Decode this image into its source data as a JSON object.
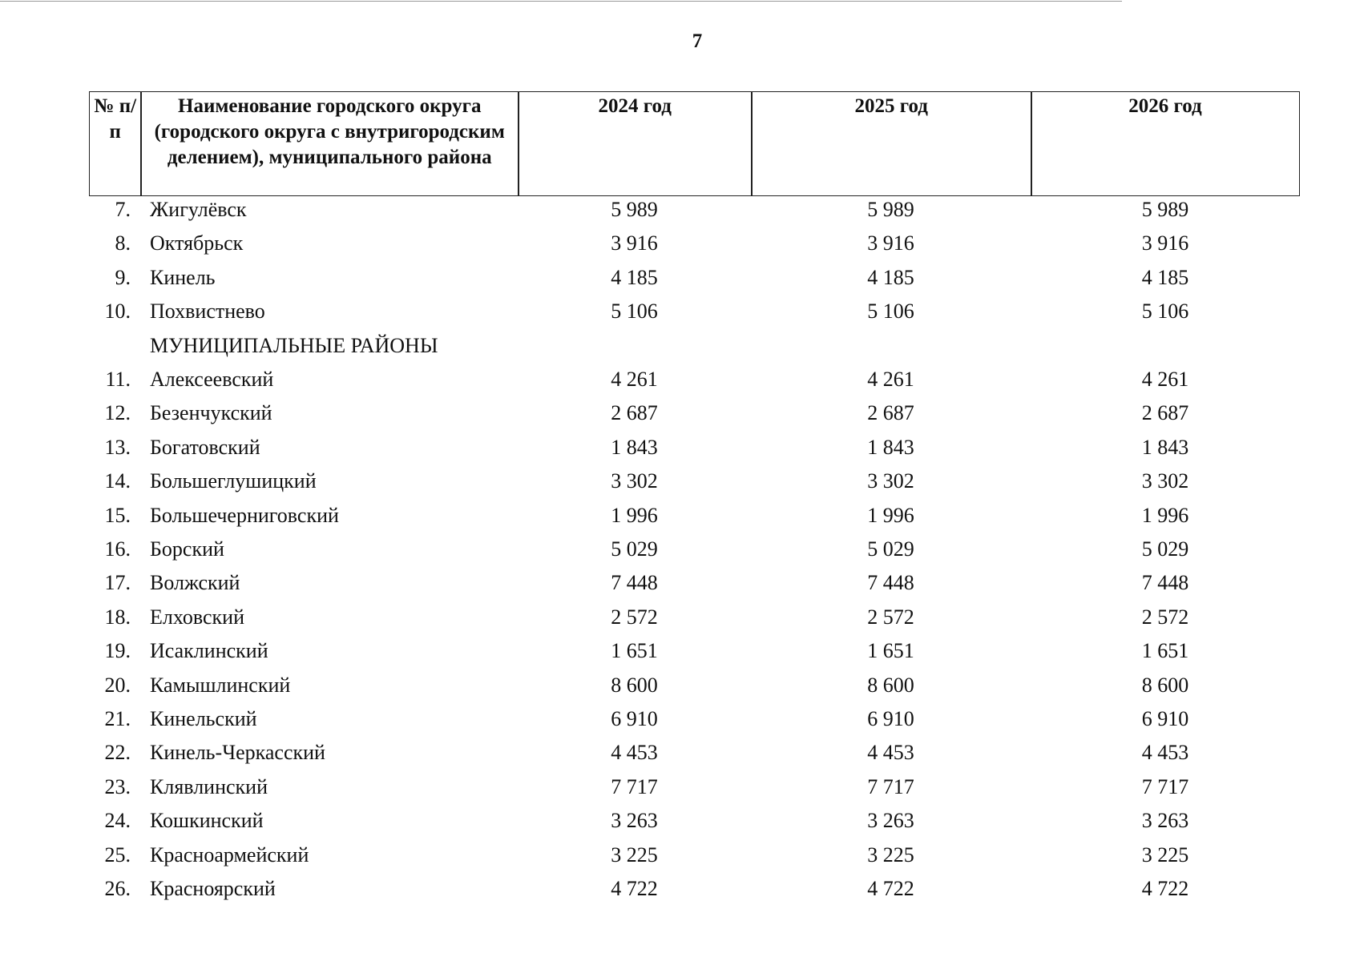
{
  "page_number": "7",
  "table": {
    "header": [
      "№ п/п",
      "Наименование городского округа (городского округа с внутригородским делением), муниципального района",
      "2024 год",
      "2025 год",
      "2026 год"
    ],
    "body": [
      {
        "no": "7.",
        "name": "Жигулёвск",
        "values": [
          "5 989",
          "5 989",
          "5 989"
        ]
      },
      {
        "no": "8.",
        "name": "Октябрьск",
        "values": [
          "3 916",
          "3 916",
          "3 916"
        ]
      },
      {
        "no": "9.",
        "name": "Кинель",
        "values": [
          "4 185",
          "4 185",
          "4 185"
        ]
      },
      {
        "no": "10.",
        "name": "Похвистнево",
        "values": [
          "5 106",
          "5 106",
          "5 106"
        ]
      },
      {
        "section": "МУНИЦИПАЛЬНЫЕ РАЙОНЫ"
      },
      {
        "no": "11.",
        "name": "Алексеевский",
        "values": [
          "4 261",
          "4 261",
          "4 261"
        ]
      },
      {
        "no": "12.",
        "name": "Безенчукский",
        "values": [
          "2 687",
          "2 687",
          "2 687"
        ]
      },
      {
        "no": "13.",
        "name": "Богатовский",
        "values": [
          "1 843",
          "1 843",
          "1 843"
        ]
      },
      {
        "no": "14.",
        "name": "Большеглушицкий",
        "values": [
          "3 302",
          "3 302",
          "3 302"
        ]
      },
      {
        "no": "15.",
        "name": "Большечерниговский",
        "values": [
          "1 996",
          "1 996",
          "1 996"
        ]
      },
      {
        "no": "16.",
        "name": "Борский",
        "values": [
          "5 029",
          "5 029",
          "5 029"
        ]
      },
      {
        "no": "17.",
        "name": "Волжский",
        "values": [
          "7 448",
          "7 448",
          "7 448"
        ]
      },
      {
        "no": "18.",
        "name": "Елховский",
        "values": [
          "2 572",
          "2 572",
          "2 572"
        ]
      },
      {
        "no": "19.",
        "name": "Исаклинский",
        "values": [
          "1 651",
          "1 651",
          "1 651"
        ]
      },
      {
        "no": "20.",
        "name": "Камышлинский",
        "values": [
          "8 600",
          "8 600",
          "8 600"
        ]
      },
      {
        "no": "21.",
        "name": "Кинельский",
        "values": [
          "6 910",
          "6 910",
          "6 910"
        ]
      },
      {
        "no": "22.",
        "name": "Кинель-Черкасский",
        "values": [
          "4 453",
          "4 453",
          "4 453"
        ]
      },
      {
        "no": "23.",
        "name": "Клявлинский",
        "values": [
          "7 717",
          "7 717",
          "7 717"
        ]
      },
      {
        "no": "24.",
        "name": "Кошкинский",
        "values": [
          "3 263",
          "3 263",
          "3 263"
        ]
      },
      {
        "no": "25.",
        "name": "Красноармейский",
        "values": [
          "3 225",
          "3 225",
          "3 225"
        ]
      },
      {
        "no": "26.",
        "name": "Красноярский",
        "values": [
          "4 722",
          "4 722",
          "4 722"
        ]
      }
    ]
  }
}
